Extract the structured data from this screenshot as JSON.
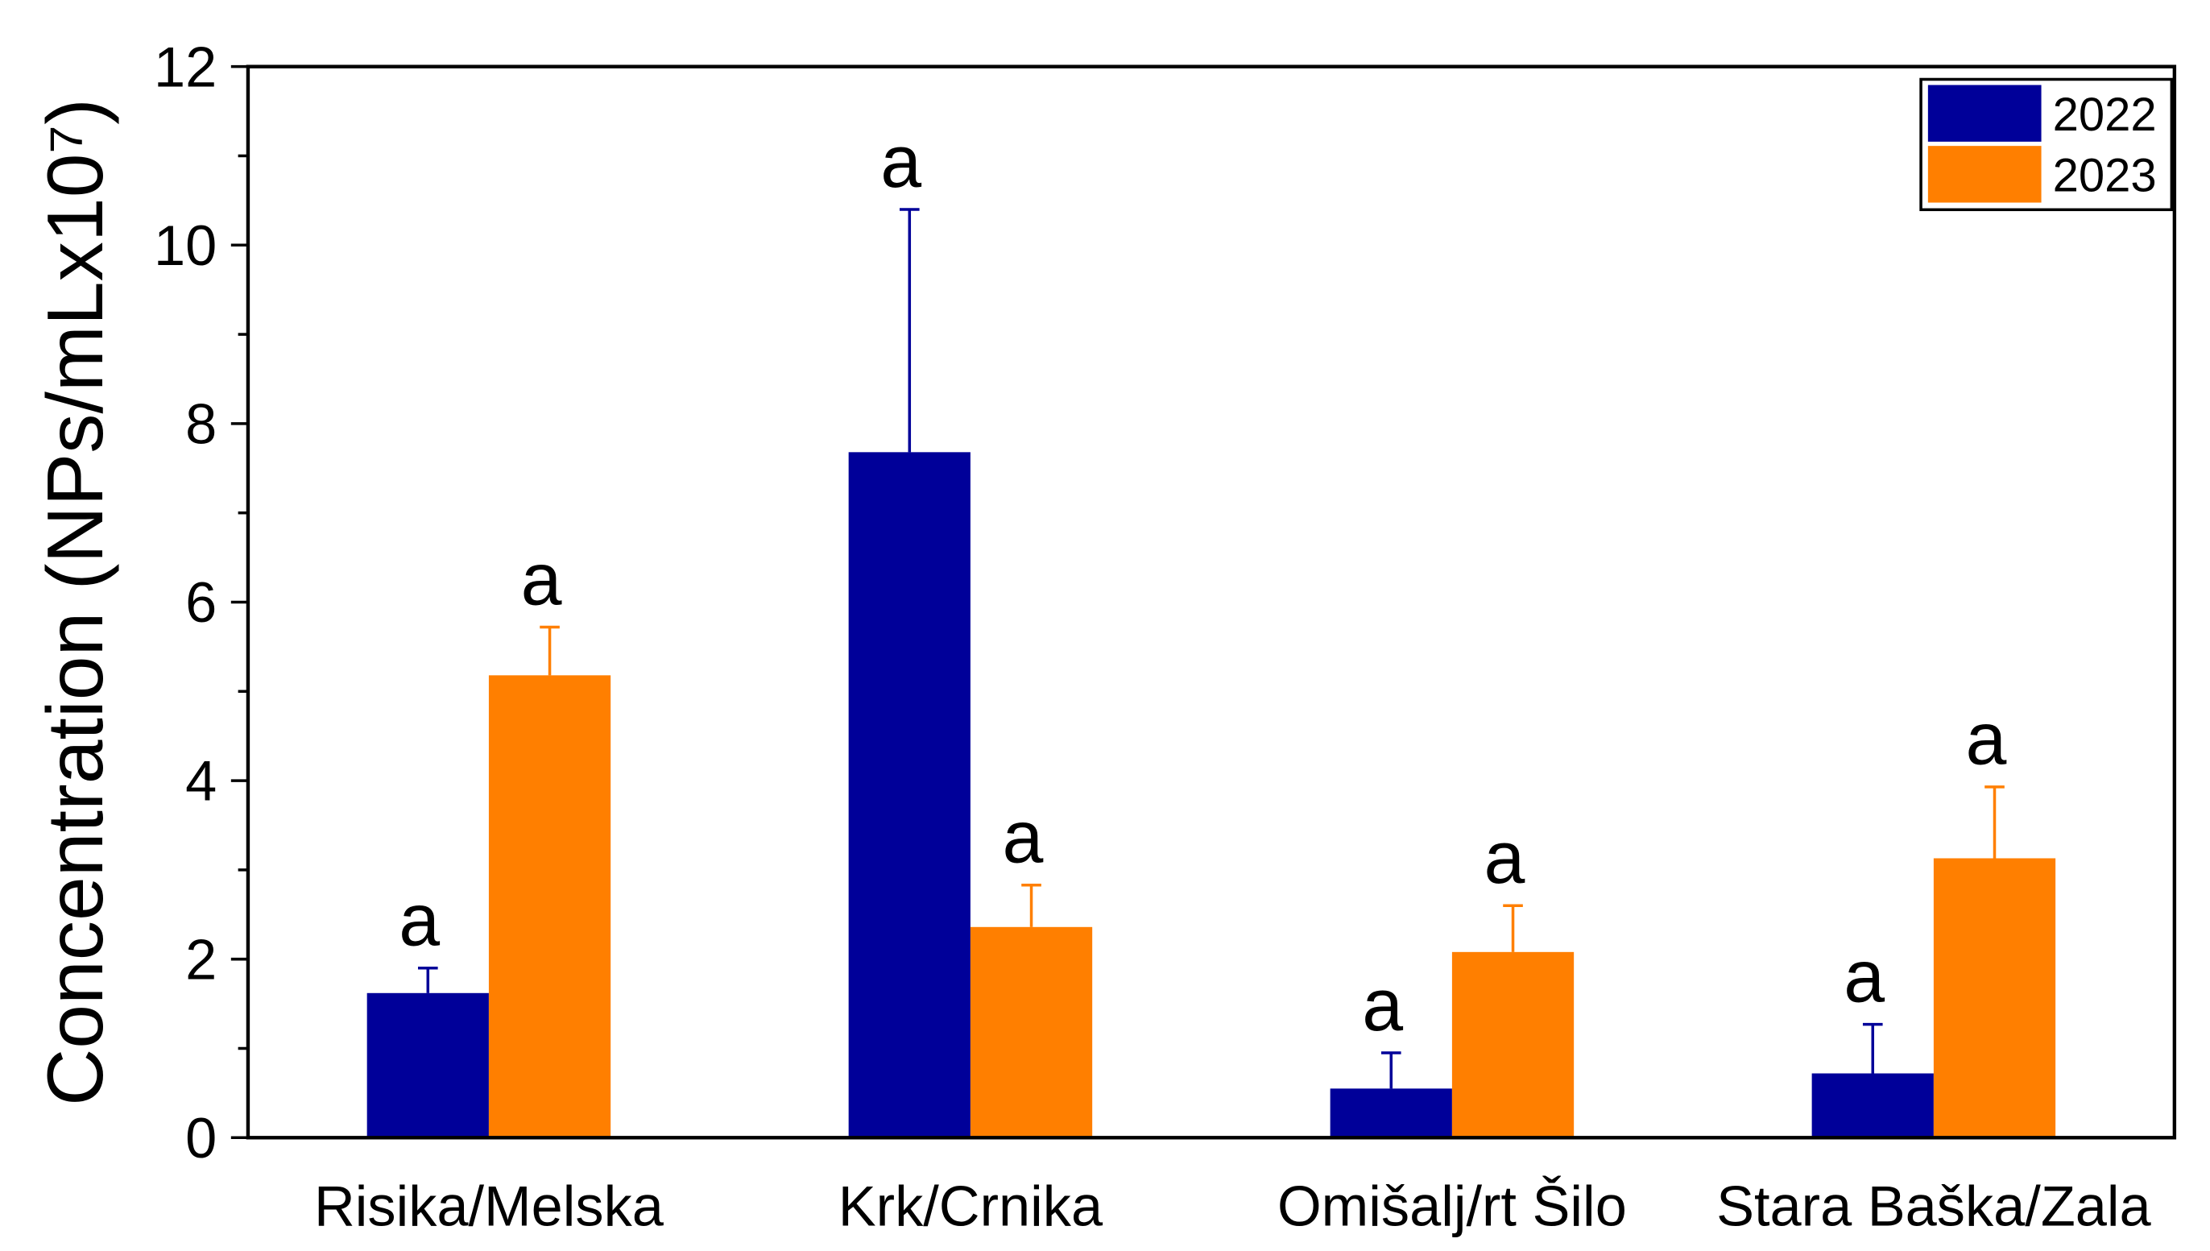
{
  "chart_data": {
    "type": "bar",
    "ylabel": "Concentration (NPs/mLx10⁷)",
    "categories": [
      "Risika/Melska",
      "Krk/Crnika",
      "Omišalj/rt Šilo",
      "Stara Baška/Zala"
    ],
    "series": [
      {
        "name": "2022",
        "color": "#000099",
        "values": [
          1.62,
          7.68,
          0.55,
          0.72
        ],
        "errors": [
          0.28,
          2.72,
          0.4,
          0.55
        ],
        "letters": [
          "a",
          "a",
          "a",
          "a"
        ]
      },
      {
        "name": "2023",
        "color": "#ff7f00",
        "values": [
          5.18,
          2.36,
          2.08,
          3.13
        ],
        "errors": [
          0.54,
          0.47,
          0.52,
          0.8
        ],
        "letters": [
          "a",
          "a",
          "a",
          "a"
        ]
      }
    ],
    "ylim": [
      0,
      12
    ],
    "yticks": [
      0,
      2,
      4,
      6,
      8,
      10,
      12
    ],
    "yminorticks": [
      1,
      3,
      5,
      7,
      9,
      11
    ],
    "grid": false,
    "legend": "upper right"
  }
}
